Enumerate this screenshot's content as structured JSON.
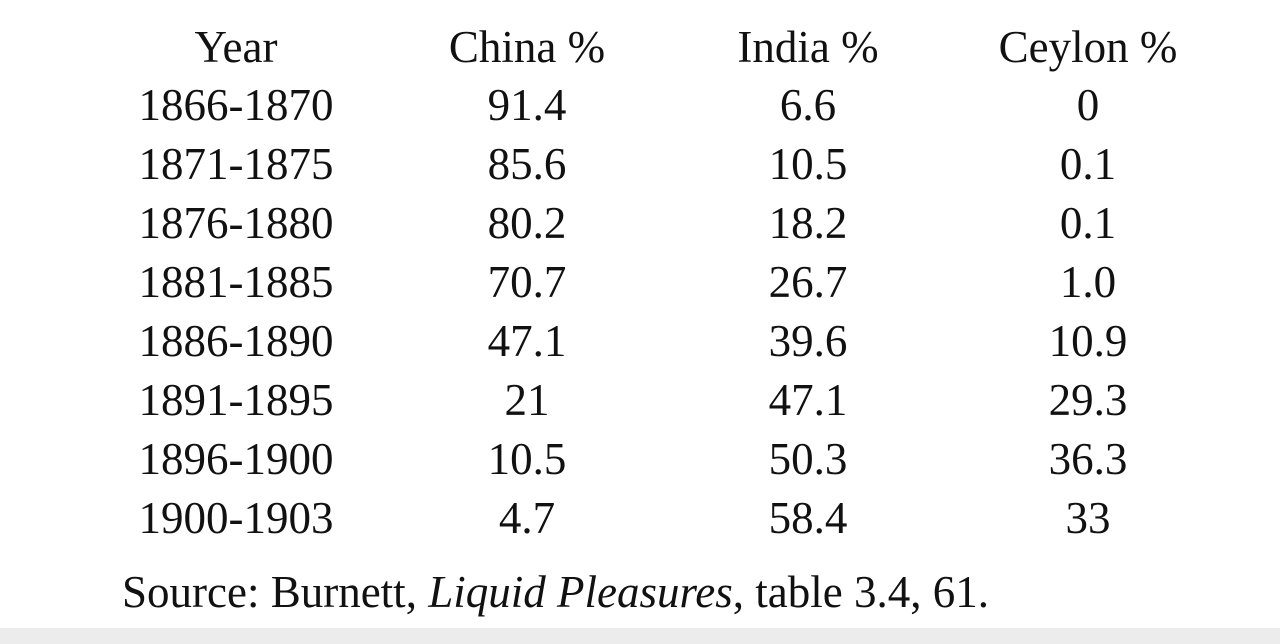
{
  "table": {
    "header": [
      "Year",
      "China %",
      "India %",
      "Ceylon %"
    ],
    "rows": [
      [
        "1866-1870",
        "91.4",
        "6.6",
        "0"
      ],
      [
        "1871-1875",
        "85.6",
        "10.5",
        "0.1"
      ],
      [
        "1876-1880",
        "80.2",
        "18.2",
        "0.1"
      ],
      [
        "1881-1885",
        "70.7",
        "26.7",
        "1.0"
      ],
      [
        "1886-1890",
        "47.1",
        "39.6",
        "10.9"
      ],
      [
        "1891-1895",
        "21",
        "47.1",
        "29.3"
      ],
      [
        "1896-1900",
        "10.5",
        "50.3",
        "36.3"
      ],
      [
        "1900-1903",
        "4.7",
        "58.4",
        "33"
      ]
    ]
  },
  "source": {
    "prefix": "Source: Burnett, ",
    "title": "Liquid Pleasures",
    "suffix": ", table 3.4, 61."
  }
}
